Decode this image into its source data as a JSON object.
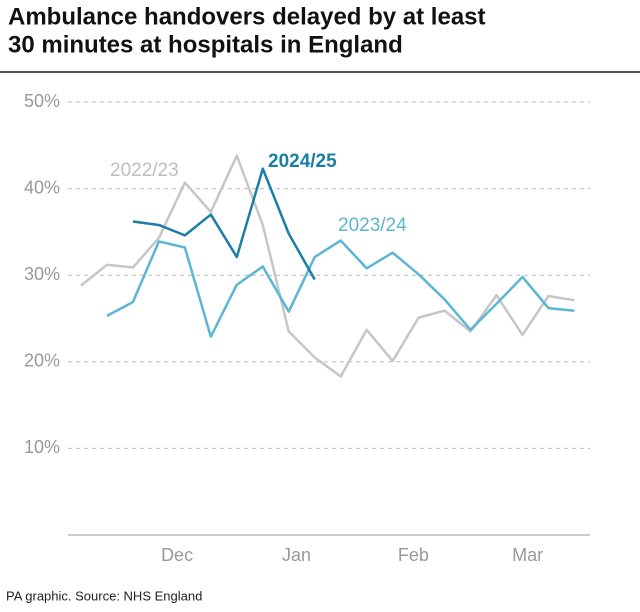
{
  "chart_data": {
    "type": "line",
    "title": [
      "Ambulance handovers delayed by at least",
      "30 minutes at hospitals in England"
    ],
    "source": "PA graphic. Source: NHS England",
    "x": [
      0,
      1,
      2,
      3,
      4,
      5,
      6,
      7,
      8,
      9,
      10,
      11,
      12,
      13,
      14,
      15,
      16,
      17,
      18,
      19
    ],
    "xlim": [
      -0.5,
      19.6
    ],
    "xticks": [
      {
        "value": 3.7,
        "label": "Dec"
      },
      {
        "value": 8.3,
        "label": "Jan"
      },
      {
        "value": 12.8,
        "label": "Feb"
      },
      {
        "value": 17.2,
        "label": "Mar"
      }
    ],
    "ylim": [
      0,
      50
    ],
    "yticks": [
      {
        "value": 10,
        "label": "10%"
      },
      {
        "value": 20,
        "label": "20%"
      },
      {
        "value": 30,
        "label": "30%"
      },
      {
        "value": 40,
        "label": "40%"
      },
      {
        "value": 50,
        "label": "50%"
      }
    ],
    "grid": true,
    "series": [
      {
        "name": "2022/23",
        "color": "#c6c6c6",
        "values": [
          28.8,
          31.2,
          30.9,
          34.3,
          40.7,
          37.3,
          43.8,
          35.8,
          23.5,
          20.5,
          18.3,
          23.7,
          20.1,
          25.1,
          25.9,
          23.5,
          27.7,
          23.1,
          27.6,
          27.1
        ]
      },
      {
        "name": "2023/24",
        "color": "#5bb6d4",
        "values": [
          null,
          25.3,
          26.9,
          33.9,
          33.2,
          22.9,
          28.9,
          31.0,
          25.8,
          32.1,
          34.0,
          30.8,
          32.6,
          30.1,
          27.2,
          23.7,
          26.7,
          29.8,
          26.2,
          25.9
        ]
      },
      {
        "name": "2024/25",
        "color": "#1b7ea6",
        "values": [
          null,
          null,
          36.2,
          35.8,
          34.6,
          37.0,
          32.1,
          42.3,
          34.8,
          29.5,
          null,
          null,
          null,
          null,
          null,
          null,
          null,
          null,
          null,
          null
        ]
      }
    ]
  }
}
